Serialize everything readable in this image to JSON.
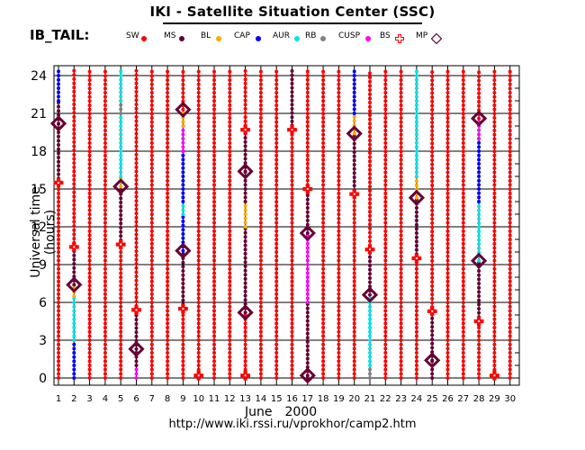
{
  "title": "IKI - Satellite Situation Center (SSC)",
  "subject": "IB_TAIL:",
  "legend": [
    {
      "label": "SW",
      "color": "#ff0000",
      "marker": "dot"
    },
    {
      "label": "MS",
      "color": "#660033",
      "marker": "dot"
    },
    {
      "label": "BL",
      "color": "#ffaa00",
      "marker": "dot"
    },
    {
      "label": "CAP",
      "color": "#0000ff",
      "marker": "dot"
    },
    {
      "label": "AUR",
      "color": "#00e5e5",
      "marker": "dot"
    },
    {
      "label": "RB",
      "color": "#808080",
      "marker": "dot"
    },
    {
      "label": "CUSP",
      "color": "#ff00ff",
      "marker": "dot"
    },
    {
      "label": "BS",
      "color": "#ff0000",
      "marker": "cross"
    },
    {
      "label": "MP",
      "color": "#660033",
      "marker": "diamond"
    }
  ],
  "chart_data": {
    "type": "scatter",
    "ylabel": "Universal time (hours)",
    "xlabel_month": "June",
    "xlabel_year": "2000",
    "url": "http://www.iki.rssi.ru/vprokhor/camp2.htm",
    "x_ticks": [
      "1",
      "2",
      "3",
      "4",
      "5",
      "6",
      "7",
      "8",
      "9",
      "10",
      "11",
      "12",
      "13",
      "14",
      "15",
      "16",
      "17",
      "18",
      "19",
      "20",
      "21",
      "22",
      "23",
      "24",
      "25",
      "26",
      "27",
      "28",
      "29",
      "30"
    ],
    "y_ticks": [
      "0",
      "3",
      "6",
      "9",
      "12",
      "15",
      "18",
      "21",
      "24"
    ],
    "xlim": [
      1,
      30
    ],
    "ylim": [
      0,
      24
    ],
    "grid": true,
    "sample_step_hours": 0.333,
    "day_segments": [
      {
        "day": 1,
        "segments": [
          [
            0,
            15.5,
            "SW"
          ],
          [
            15.5,
            20.2,
            "MS"
          ],
          [
            20.2,
            22,
            "MS"
          ],
          [
            22,
            24.5,
            "CAP"
          ]
        ]
      },
      {
        "day": 2,
        "segments": [
          [
            0,
            3,
            "CAP"
          ],
          [
            3,
            6.5,
            "AUR"
          ],
          [
            6.5,
            7.4,
            "BL"
          ],
          [
            7.4,
            10.4,
            "MS"
          ],
          [
            10.4,
            24.5,
            "SW"
          ]
        ]
      },
      {
        "day": 3,
        "segments": [
          [
            0,
            24.5,
            "SW"
          ]
        ]
      },
      {
        "day": 4,
        "segments": [
          [
            0,
            24.5,
            "SW"
          ]
        ]
      },
      {
        "day": 5,
        "segments": [
          [
            0,
            10.6,
            "SW"
          ],
          [
            10.6,
            15.2,
            "MS"
          ],
          [
            15.2,
            16,
            "BL"
          ],
          [
            16,
            21,
            "AUR"
          ],
          [
            21,
            22,
            "RB"
          ],
          [
            22,
            24.5,
            "AUR"
          ]
        ]
      },
      {
        "day": 6,
        "segments": [
          [
            0,
            1,
            "CUSP"
          ],
          [
            1,
            2.3,
            "MS"
          ],
          [
            2.3,
            5.4,
            "MS"
          ],
          [
            5.4,
            24.5,
            "SW"
          ]
        ]
      },
      {
        "day": 7,
        "segments": [
          [
            0,
            24.5,
            "SW"
          ]
        ]
      },
      {
        "day": 8,
        "segments": [
          [
            0,
            24.5,
            "SW"
          ]
        ]
      },
      {
        "day": 9,
        "segments": [
          [
            0,
            5.5,
            "SW"
          ],
          [
            5.5,
            10.1,
            "MS"
          ],
          [
            10.1,
            13,
            "CAP"
          ],
          [
            13,
            14,
            "AUR"
          ],
          [
            14,
            18,
            "CAP"
          ],
          [
            18,
            20,
            "CUSP"
          ],
          [
            20,
            21.3,
            "BL"
          ],
          [
            21.3,
            24.5,
            "SW"
          ]
        ]
      },
      {
        "day": 10,
        "segments": [
          [
            0,
            24.5,
            "SW"
          ]
        ]
      },
      {
        "day": 11,
        "segments": [
          [
            0,
            24.5,
            "SW"
          ]
        ]
      },
      {
        "day": 12,
        "segments": [
          [
            0,
            24.5,
            "SW"
          ]
        ]
      },
      {
        "day": 13,
        "segments": [
          [
            0,
            5.2,
            "SW"
          ],
          [
            5.2,
            12,
            "MS"
          ],
          [
            12,
            14,
            "BL"
          ],
          [
            14,
            16.4,
            "MS"
          ],
          [
            16.4,
            19.7,
            "MS"
          ],
          [
            19.7,
            24.5,
            "SW"
          ]
        ]
      },
      {
        "day": 14,
        "segments": [
          [
            0,
            24.5,
            "SW"
          ]
        ]
      },
      {
        "day": 15,
        "segments": [
          [
            0,
            24.5,
            "SW"
          ]
        ]
      },
      {
        "day": 16,
        "segments": [
          [
            0,
            19.7,
            "SW"
          ],
          [
            19.7,
            24.5,
            "MS"
          ]
        ]
      },
      {
        "day": 17,
        "segments": [
          [
            0,
            0.2,
            "MS"
          ],
          [
            0.2,
            6,
            "MS"
          ],
          [
            6,
            11.5,
            "CUSP"
          ],
          [
            11.5,
            15,
            "MS"
          ],
          [
            15,
            24.5,
            "SW"
          ]
        ]
      },
      {
        "day": 18,
        "segments": [
          [
            0,
            24.5,
            "SW"
          ]
        ]
      },
      {
        "day": 19,
        "segments": [
          [
            0,
            24.5,
            "SW"
          ]
        ]
      },
      {
        "day": 20,
        "segments": [
          [
            0,
            14.6,
            "SW"
          ],
          [
            14.6,
            19.4,
            "MS"
          ],
          [
            19.4,
            21,
            "BL"
          ],
          [
            21,
            24.5,
            "CAP"
          ]
        ]
      },
      {
        "day": 21,
        "segments": [
          [
            0,
            1,
            "RB"
          ],
          [
            1,
            6.6,
            "AUR"
          ],
          [
            6.6,
            10.2,
            "MS"
          ],
          [
            10.2,
            24.5,
            "SW"
          ]
        ]
      },
      {
        "day": 22,
        "segments": [
          [
            0,
            24.5,
            "SW"
          ]
        ]
      },
      {
        "day": 23,
        "segments": [
          [
            0,
            24.5,
            "SW"
          ]
        ]
      },
      {
        "day": 24,
        "segments": [
          [
            0,
            9.5,
            "SW"
          ],
          [
            9.5,
            14.3,
            "MS"
          ],
          [
            14.3,
            16,
            "BL"
          ],
          [
            16,
            24.5,
            "AUR"
          ]
        ]
      },
      {
        "day": 25,
        "segments": [
          [
            0,
            1.4,
            "MS"
          ],
          [
            1.4,
            5.3,
            "MS"
          ],
          [
            5.3,
            24.5,
            "SW"
          ]
        ]
      },
      {
        "day": 26,
        "segments": [
          [
            0,
            24.5,
            "SW"
          ]
        ]
      },
      {
        "day": 27,
        "segments": [
          [
            0,
            24.5,
            "SW"
          ]
        ]
      },
      {
        "day": 28,
        "segments": [
          [
            0,
            4.5,
            "SW"
          ],
          [
            4.5,
            9.3,
            "MS"
          ],
          [
            9.3,
            14,
            "AUR"
          ],
          [
            14,
            19,
            "CAP"
          ],
          [
            19,
            20.6,
            "CUSP"
          ],
          [
            20.6,
            24.5,
            "SW"
          ]
        ]
      },
      {
        "day": 29,
        "segments": [
          [
            0,
            24.5,
            "SW"
          ]
        ]
      },
      {
        "day": 30,
        "segments": [
          [
            0,
            24.5,
            "SW"
          ]
        ]
      }
    ],
    "bow_shock_crossings": [
      {
        "day": 1,
        "ut": 15.5
      },
      {
        "day": 2,
        "ut": 10.4
      },
      {
        "day": 5,
        "ut": 10.6
      },
      {
        "day": 6,
        "ut": 5.4
      },
      {
        "day": 9,
        "ut": 5.5
      },
      {
        "day": 10,
        "ut": 0.2
      },
      {
        "day": 13,
        "ut": 19.7
      },
      {
        "day": 13,
        "ut": 0.2
      },
      {
        "day": 16,
        "ut": 19.7
      },
      {
        "day": 17,
        "ut": 15.0
      },
      {
        "day": 20,
        "ut": 14.6
      },
      {
        "day": 21,
        "ut": 10.2
      },
      {
        "day": 24,
        "ut": 9.5
      },
      {
        "day": 25,
        "ut": 5.3
      },
      {
        "day": 28,
        "ut": 4.5
      },
      {
        "day": 29,
        "ut": 0.2
      }
    ],
    "magnetopause_crossings": [
      {
        "day": 1,
        "ut": 20.2
      },
      {
        "day": 2,
        "ut": 7.4
      },
      {
        "day": 5,
        "ut": 15.2
      },
      {
        "day": 6,
        "ut": 2.3
      },
      {
        "day": 9,
        "ut": 10.1
      },
      {
        "day": 9,
        "ut": 21.3
      },
      {
        "day": 13,
        "ut": 5.2
      },
      {
        "day": 13,
        "ut": 16.4
      },
      {
        "day": 17,
        "ut": 11.5
      },
      {
        "day": 17,
        "ut": 0.2
      },
      {
        "day": 20,
        "ut": 19.4
      },
      {
        "day": 21,
        "ut": 6.6
      },
      {
        "day": 24,
        "ut": 14.3
      },
      {
        "day": 25,
        "ut": 1.4
      },
      {
        "day": 28,
        "ut": 9.3
      },
      {
        "day": 28,
        "ut": 20.6
      }
    ]
  }
}
